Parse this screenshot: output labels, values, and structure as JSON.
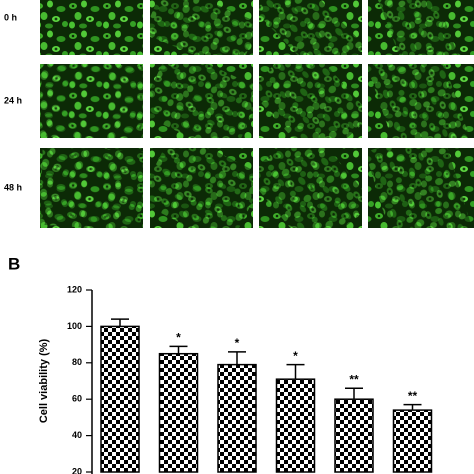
{
  "panel_a": {
    "row_labels": [
      "0 h",
      "24 h",
      "48 h"
    ]
  },
  "chart_data": {
    "type": "bar",
    "panel_label": "B",
    "y_label": "Cell viability (%)",
    "categories": [
      null,
      null,
      null,
      null,
      null,
      null
    ],
    "values": [
      100,
      85,
      79,
      71,
      60,
      54
    ],
    "errors": [
      4,
      4,
      7,
      8,
      6,
      3
    ],
    "significance": [
      null,
      "*",
      "*",
      "*",
      "**",
      "**"
    ],
    "color": "#000000",
    "ylim": [
      20,
      120
    ],
    "yticks": [
      20,
      40,
      60,
      80,
      100,
      120
    ],
    "grid": false
  }
}
